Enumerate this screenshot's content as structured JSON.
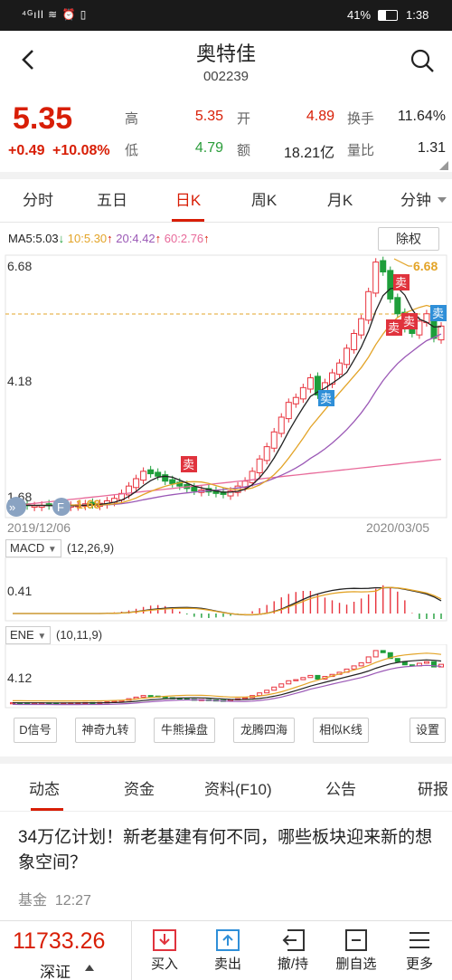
{
  "status": {
    "left_icons": "⁴ᴳıll ≋ ⏰ ▯",
    "battery": "41%",
    "time": "1:38"
  },
  "header": {
    "title": "奥特佳",
    "code": "002239"
  },
  "quote": {
    "price": "5.35",
    "change": "+0.49",
    "change_pct": "+10.08%",
    "high_label": "高",
    "high": "5.35",
    "open_label": "开",
    "open": "4.89",
    "turnover_label": "换手",
    "turnover": "11.64%",
    "low_label": "低",
    "low": "4.79",
    "amount_label": "额",
    "amount": "18.21亿",
    "vol_ratio_label": "量比",
    "vol_ratio": "1.31"
  },
  "tabs": [
    "分时",
    "五日",
    "日K",
    "周K",
    "月K",
    "分钟"
  ],
  "chart": {
    "ma5": "MA5:5.03",
    "ma10": "10:5.30",
    "ma20": "20:4.42",
    "ma60": "60:2.76",
    "adjust_button": "除权",
    "y_high": "6.68",
    "y_mid": "4.18",
    "y_low": "1.68",
    "max_label": "6.68",
    "min_label": "1.68",
    "date_start": "2019/12/06",
    "date_end": "2020/03/05",
    "sell_marker": "卖",
    "colors": {
      "up": "#e8333d",
      "down": "#1e9e3a",
      "ma5": "#222222",
      "ma10": "#e3a428",
      "ma20": "#9b59b6",
      "ma60": "#e86a9a"
    }
  },
  "macd": {
    "name": "MACD",
    "params": "(12,26,9)",
    "y_label": "0.41"
  },
  "ene": {
    "name": "ENE",
    "params": "(10,11,9)",
    "y_label": "4.12"
  },
  "tools": [
    "D信号",
    "神奇九转",
    "牛熊操盘",
    "龙腾四海",
    "相似K线",
    "设置"
  ],
  "news_tabs": [
    "动态",
    "资金",
    "资料(F10)",
    "公告",
    "研报"
  ],
  "news": {
    "title": "34万亿计划！新老基建有何不同，哪些板块迎来新的想象空间？",
    "source": "基金",
    "time": "12:27"
  },
  "bottom": {
    "index_value": "11733.26",
    "index_name": "深证",
    "buy": "买入",
    "sell": "卖出",
    "cancel": "撤/持",
    "delete": "删自选",
    "more": "更多"
  }
}
